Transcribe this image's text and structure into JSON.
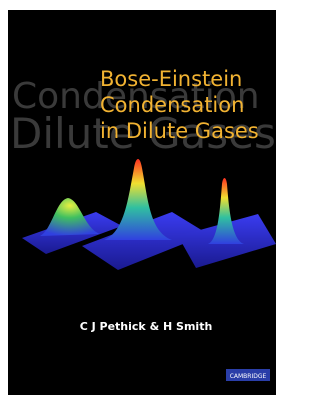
{
  "cover": {
    "background_text": [
      "Condensation",
      "Dilute Gases"
    ],
    "title_lines": [
      "Bose-Einstein",
      "Condensation",
      "in Dilute Gases"
    ],
    "authors": "C J Pethick & H Smith",
    "publisher": "CAMBRIDGE"
  }
}
